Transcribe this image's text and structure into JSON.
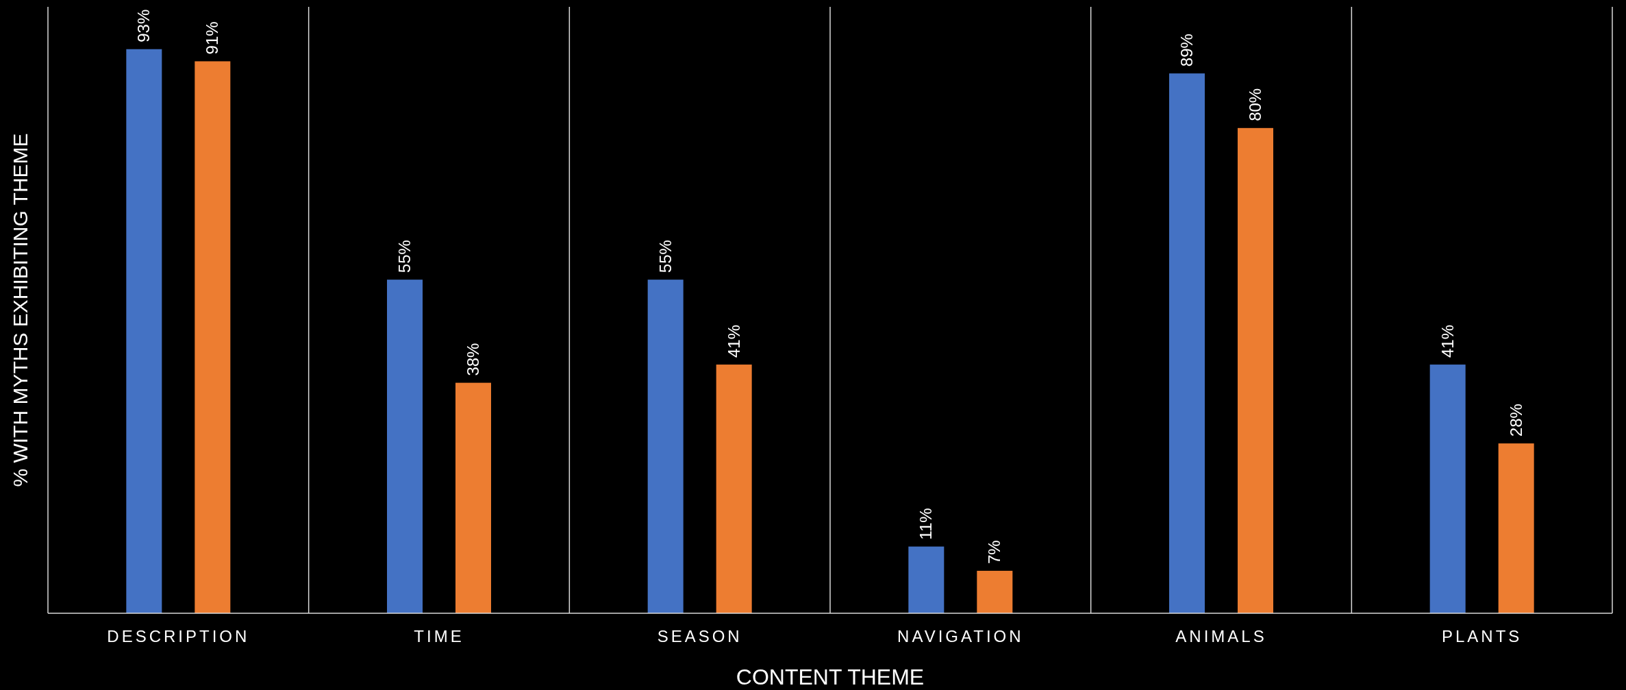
{
  "chart_data": {
    "type": "bar",
    "xlabel": "CONTENT THEME",
    "ylabel": "% WITH MYTHS EXHIBITING THEME",
    "categories": [
      "DESCRIPTION",
      "TIME",
      "SEASON",
      "NAVIGATION",
      "ANIMALS",
      "PLANTS"
    ],
    "series": [
      {
        "color": "#4472c4",
        "values": [
          93,
          55,
          55,
          11,
          89,
          41
        ],
        "value_labels": [
          "93%",
          "55%",
          "55%",
          "11%",
          "89%",
          "41%"
        ]
      },
      {
        "color": "#ed7d31",
        "values": [
          91,
          38,
          41,
          7,
          80,
          28
        ],
        "value_labels": [
          "91%",
          "38%",
          "41%",
          "7%",
          "80%",
          "28%"
        ]
      }
    ],
    "grid": "x"
  }
}
